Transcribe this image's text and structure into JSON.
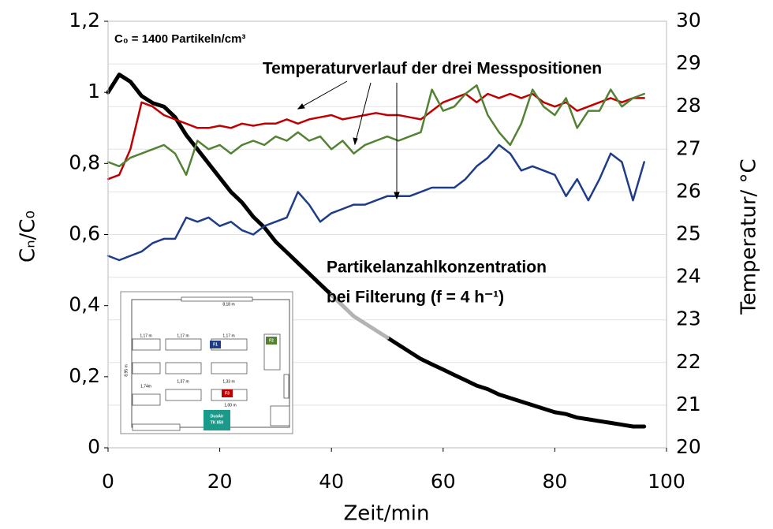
{
  "chart_data": {
    "type": "line",
    "annotations": [
      "C₀ = 1400 Partikeln/cm³",
      "Temperaturverlauf der drei Messpositionen",
      "Partikelanzahlkonzentration",
      "bei Filterung (f = 4 h⁻¹)"
    ],
    "x_label": "Zeit/min",
    "y_label": "Cₙ/C₀",
    "y2_label": "Temperatur/ °C",
    "x": [
      0,
      2,
      4,
      6,
      8,
      10,
      12,
      14,
      16,
      18,
      20,
      22,
      24,
      26,
      28,
      30,
      32,
      34,
      36,
      38,
      40,
      42,
      44,
      46,
      48,
      50,
      52,
      54,
      56,
      58,
      60,
      62,
      64,
      66,
      68,
      70,
      72,
      74,
      76,
      78,
      80,
      82,
      84,
      86,
      88,
      90,
      92,
      94,
      96
    ],
    "series": [
      {
        "color": "#000000",
        "values": [
          1.0,
          1.05,
          1.03,
          0.99,
          0.97,
          0.96,
          0.93,
          0.88,
          0.84,
          0.8,
          0.76,
          0.72,
          0.69,
          0.65,
          0.62,
          0.58,
          0.55,
          0.52,
          0.49,
          0.46,
          0.43,
          null,
          null,
          null,
          null,
          0.31,
          0.29,
          0.27,
          0.25,
          0.235,
          0.22,
          0.205,
          0.19,
          0.175,
          0.165,
          0.15,
          0.14,
          0.13,
          0.12,
          0.11,
          0.1,
          0.095,
          0.085,
          0.08,
          0.075,
          0.07,
          0.065,
          0.06,
          0.06
        ]
      },
      {
        "color": "#b3b3b3",
        "values": [
          null,
          null,
          null,
          null,
          null,
          null,
          null,
          null,
          null,
          null,
          null,
          null,
          null,
          null,
          null,
          null,
          null,
          null,
          null,
          null,
          0.43,
          0.4,
          0.37,
          0.35,
          0.33,
          0.31,
          null,
          null,
          null,
          null,
          null,
          null,
          null,
          null,
          null,
          null,
          null,
          null,
          null,
          null,
          null,
          null,
          null,
          null,
          null,
          null,
          null,
          null,
          null
        ]
      },
      {
        "color": "#c00000",
        "axis": "y2",
        "values": [
          26.3,
          26.4,
          27.0,
          28.1,
          28.0,
          27.8,
          27.7,
          27.6,
          27.5,
          27.5,
          27.55,
          27.5,
          27.6,
          27.55,
          27.6,
          27.6,
          27.7,
          27.6,
          27.7,
          27.75,
          27.8,
          27.7,
          27.75,
          27.8,
          27.85,
          27.8,
          27.8,
          27.75,
          27.7,
          27.9,
          28.1,
          28.2,
          28.3,
          28.1,
          28.3,
          28.2,
          28.3,
          28.2,
          28.3,
          28.1,
          28.0,
          28.1,
          27.9,
          28.0,
          28.1,
          28.2,
          28.1,
          28.2,
          28.2
        ]
      },
      {
        "color": "#548235",
        "axis": "y2",
        "values": [
          26.7,
          26.6,
          26.8,
          26.9,
          27.0,
          27.1,
          26.9,
          26.4,
          27.2,
          27.0,
          27.1,
          26.9,
          27.1,
          27.2,
          27.1,
          27.3,
          27.2,
          27.4,
          27.2,
          27.3,
          27.0,
          27.2,
          26.9,
          27.1,
          27.2,
          27.3,
          27.2,
          27.3,
          27.4,
          28.4,
          27.9,
          28.0,
          28.3,
          28.5,
          27.8,
          27.4,
          27.1,
          27.6,
          28.4,
          28.0,
          27.8,
          28.2,
          27.5,
          27.9,
          27.9,
          28.4,
          28.0,
          28.2,
          28.3
        ]
      },
      {
        "color": "#1f3c88",
        "axis": "y2",
        "values": [
          24.5,
          24.4,
          24.5,
          24.6,
          24.8,
          24.9,
          24.9,
          25.4,
          25.3,
          25.4,
          25.2,
          25.3,
          25.1,
          25.0,
          25.2,
          25.3,
          25.4,
          26.0,
          25.7,
          25.3,
          25.5,
          25.6,
          25.7,
          25.7,
          25.8,
          25.9,
          25.9,
          25.9,
          26.0,
          26.1,
          26.1,
          26.1,
          26.3,
          26.6,
          26.8,
          27.1,
          26.9,
          26.5,
          26.6,
          26.5,
          26.4,
          25.9,
          26.3,
          25.8,
          26.3,
          26.9,
          26.7,
          25.8,
          26.7
        ]
      }
    ],
    "xlim": [
      0,
      100
    ],
    "xticks": [
      0,
      20,
      40,
      60,
      80,
      100
    ],
    "ylim": [
      0,
      1.2
    ],
    "yticks": [
      0,
      {
        "value": 0.2,
        "label": "0,2"
      },
      {
        "value": 0.4,
        "label": "0,4"
      },
      {
        "value": 0.6,
        "label": "0,6"
      },
      {
        "value": 0.8,
        "label": "0,8"
      },
      1,
      {
        "value": 1.2,
        "label": "1,2"
      }
    ],
    "y2lim": [
      20,
      30
    ],
    "y2ticks": [
      20,
      21,
      22,
      23,
      24,
      25,
      26,
      27,
      28,
      29,
      30
    ],
    "grid": true
  },
  "inset": {
    "labels": [
      "8,18 m",
      "8,95 m",
      "F1",
      "F2",
      "F3",
      "DuoAir",
      "TK 850",
      "1,17 m",
      "1,17 m",
      "1,17 m",
      "1,74m",
      "1,37 m",
      "1,33 m",
      "1,00 m"
    ]
  }
}
